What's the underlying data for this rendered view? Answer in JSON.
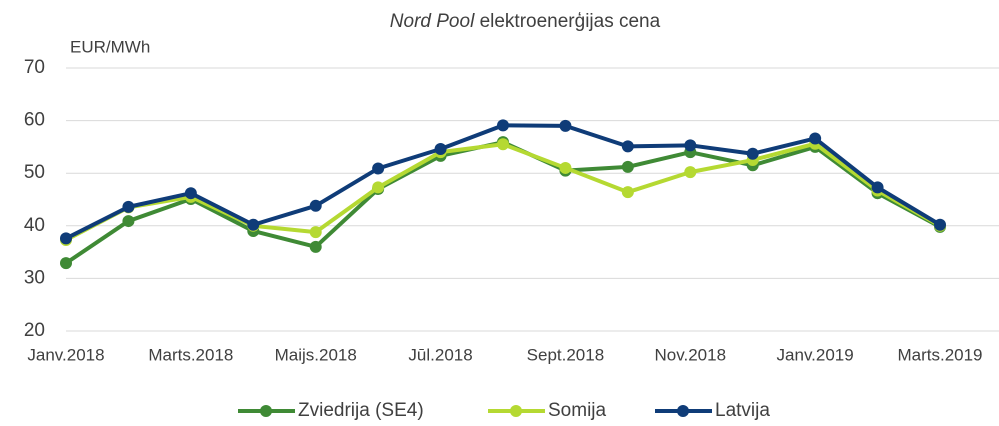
{
  "chart_data": {
    "type": "line",
    "title": [
      {
        "text": "Nord Pool",
        "italic": true
      },
      {
        "text": " elektroenerģijas cena",
        "italic": false
      }
    ],
    "y_label": "EUR/MWh",
    "categories": [
      "Janv.2018",
      null,
      "Marts.2018",
      null,
      "Maijs.2018",
      null,
      "Jūl.2018",
      null,
      "Sept.2018",
      null,
      "Nov.2018",
      null,
      "Janv.2019",
      null,
      "Marts.2019"
    ],
    "series": [
      {
        "name": "Zviedrija (SE4)",
        "color": "#3f8a35",
        "values": [
          32.9,
          40.9,
          45.1,
          39.0,
          36.0,
          47.0,
          53.3,
          55.9,
          50.5,
          51.2,
          54.0,
          51.5,
          55.0,
          46.2,
          39.8
        ]
      },
      {
        "name": "Somija",
        "color": "#b5d932",
        "values": [
          37.3,
          43.5,
          45.5,
          40.0,
          38.8,
          47.3,
          54.0,
          55.5,
          51.0,
          46.4,
          50.2,
          52.5,
          55.6,
          46.7,
          40.0
        ]
      },
      {
        "name": "Latvija",
        "color": "#0f3c78",
        "values": [
          37.6,
          43.6,
          46.2,
          40.2,
          43.8,
          50.9,
          54.6,
          59.1,
          59.0,
          55.1,
          55.3,
          53.7,
          56.6,
          47.3,
          40.2
        ]
      }
    ],
    "ylim": [
      20,
      70
    ],
    "yticks": [
      20,
      30,
      40,
      50,
      60,
      70
    ],
    "grid": true,
    "legend": "bottom"
  }
}
